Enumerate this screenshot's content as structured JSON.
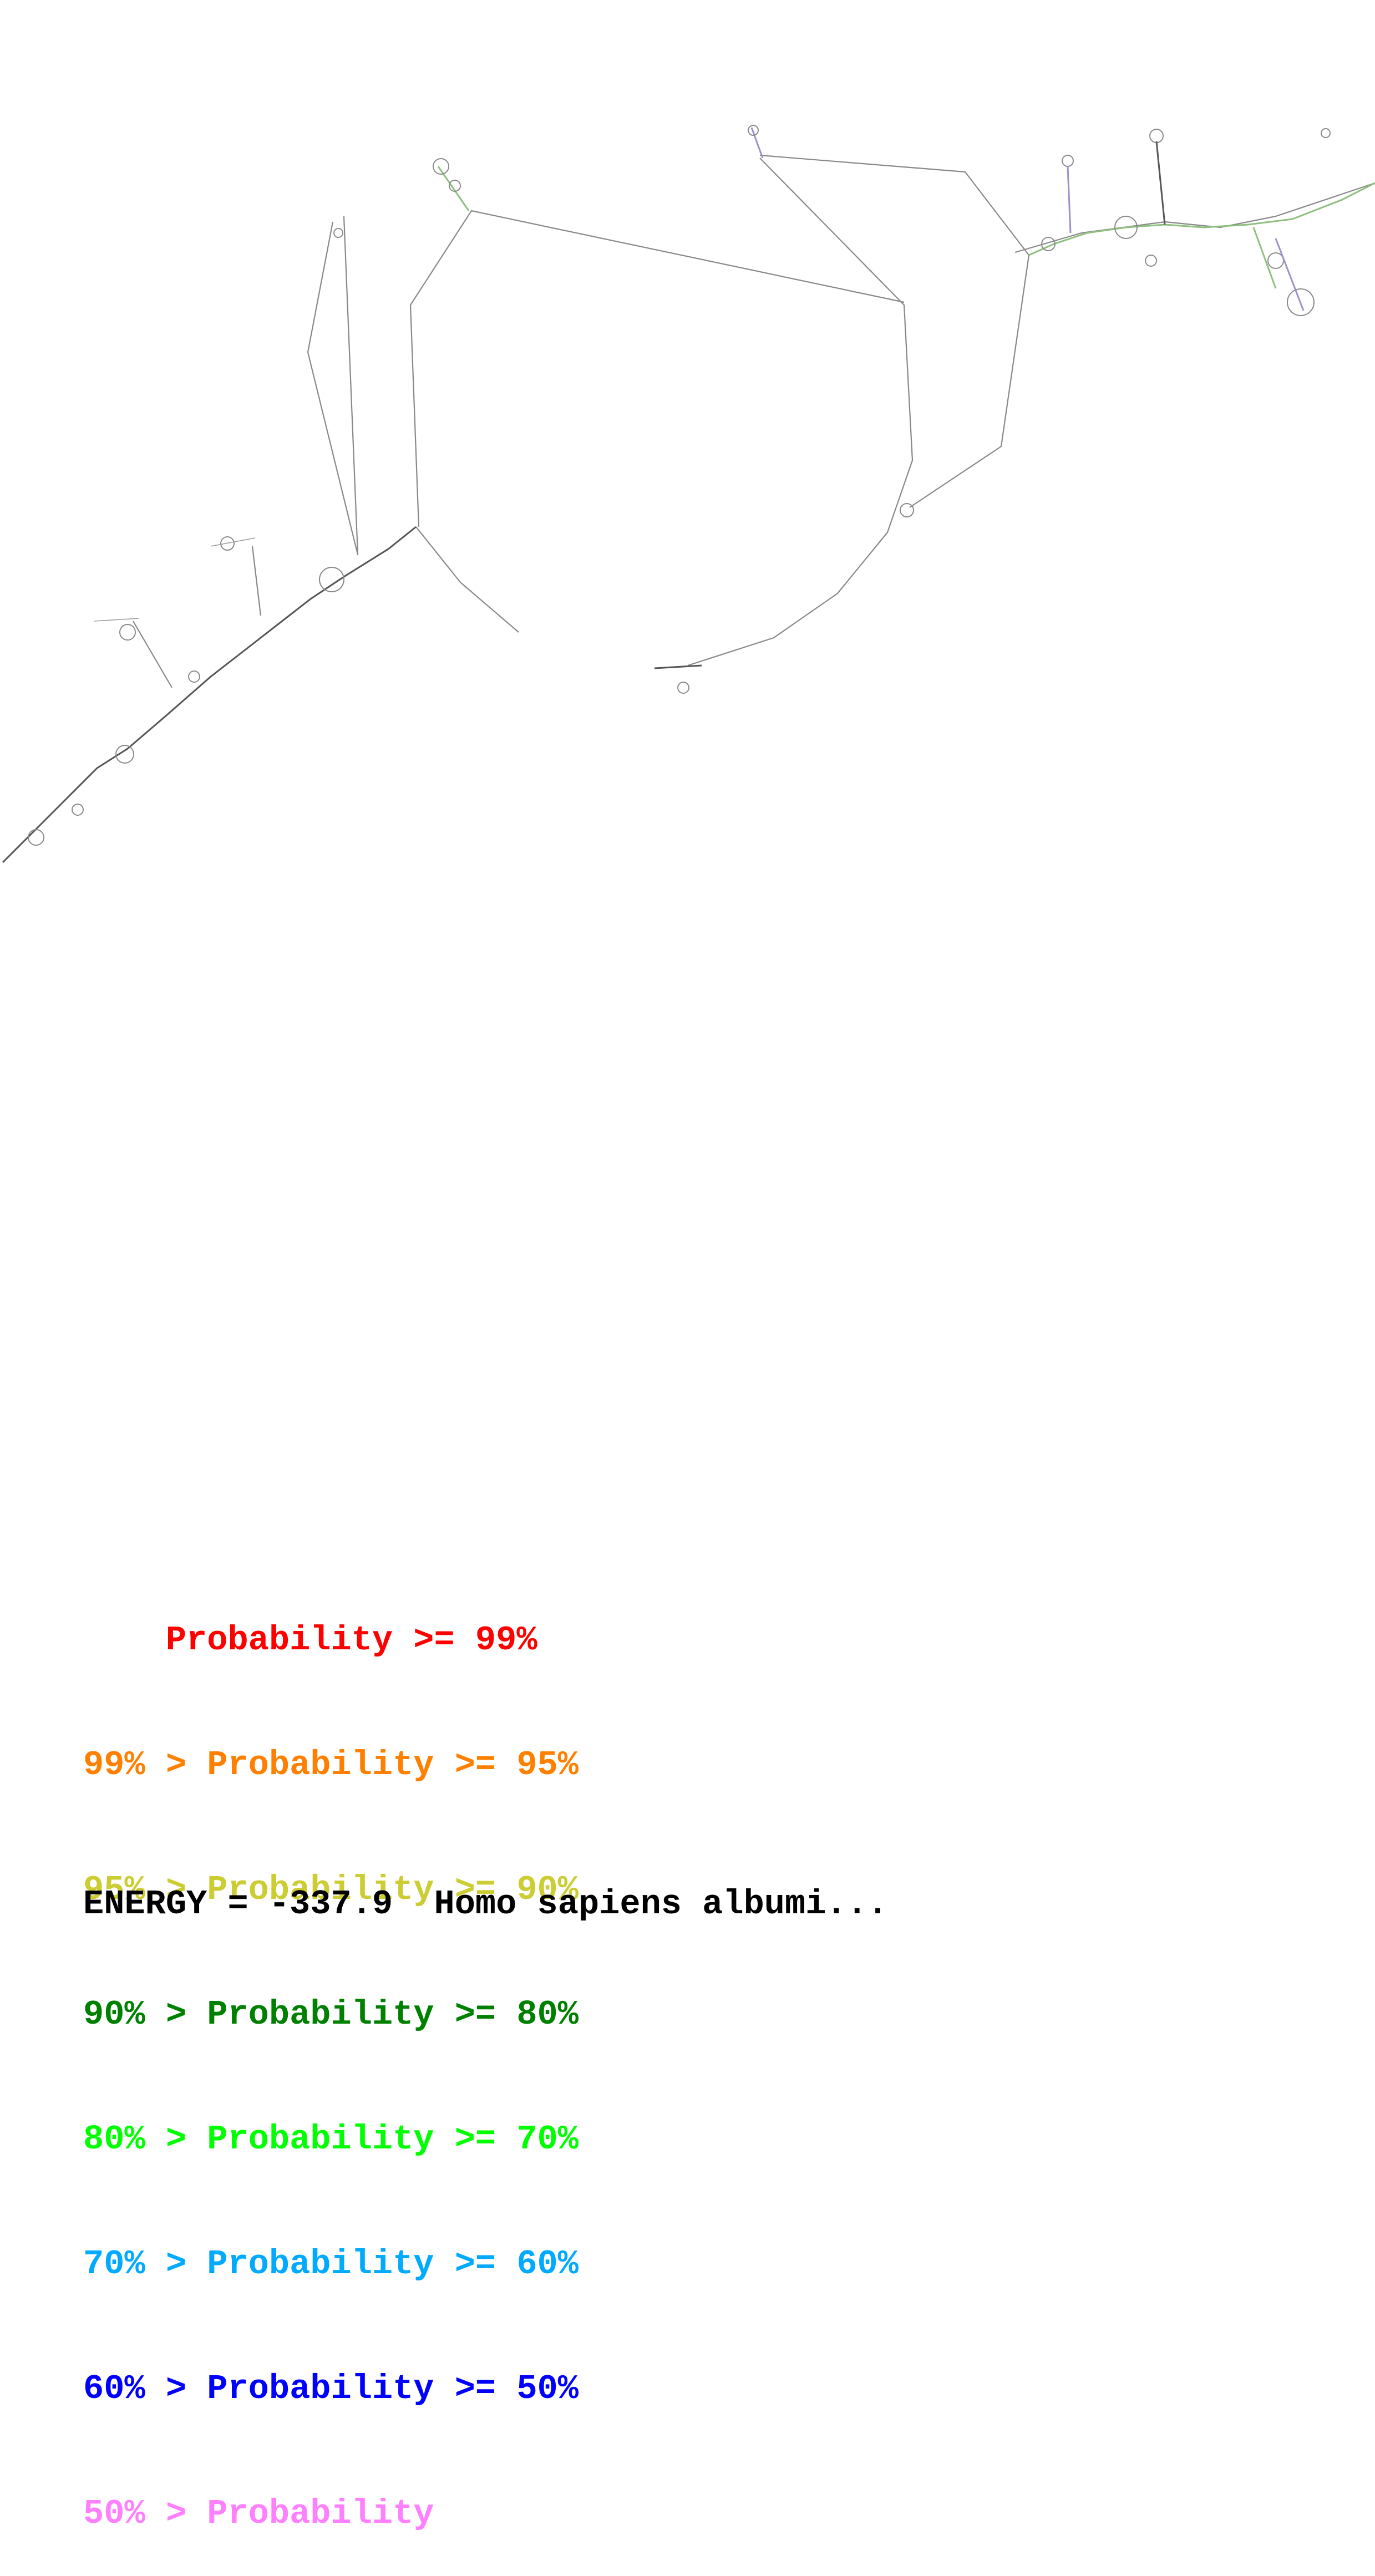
{
  "legend": {
    "rows": [
      {
        "prefix": "    ",
        "label": "Probability >= 99%",
        "color": "#ff0000"
      },
      {
        "prefix": "99% > ",
        "label": "Probability >= 95%",
        "color": "#ff8000"
      },
      {
        "prefix": "95% > ",
        "label": "Probability >= 90%",
        "color": "#cccc33"
      },
      {
        "prefix": "90% > ",
        "label": "Probability >= 80%",
        "color": "#008000"
      },
      {
        "prefix": "80% > ",
        "label": "Probability >= 70%",
        "color": "#00ff00"
      },
      {
        "prefix": "70% > ",
        "label": "Probability >= 60%",
        "color": "#00aaff"
      },
      {
        "prefix": "60% > ",
        "label": "Probability >= 50%",
        "color": "#0000ff"
      },
      {
        "prefix": "50% > ",
        "label": "Probability",
        "color": "#ff80ff"
      }
    ]
  },
  "footer": {
    "energy_text": "ENERGY = -337.9  Homo sapiens albumi..."
  },
  "colors": {
    "backbone": "#888888",
    "helix_green": "#8fbf7f",
    "helix_purple": "#a08fc8"
  }
}
